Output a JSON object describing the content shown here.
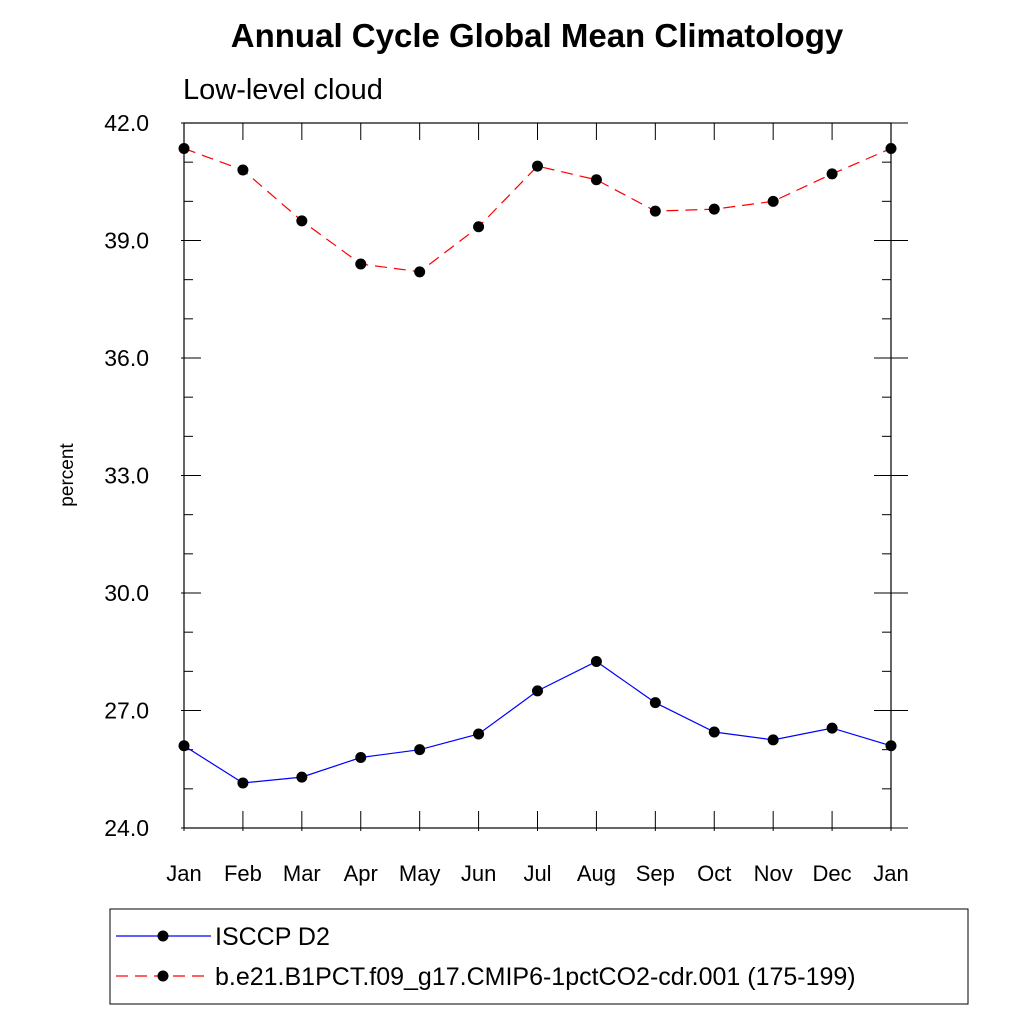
{
  "chart_data": {
    "type": "line",
    "title": "Annual Cycle Global Mean Climatology",
    "subtitle": "Low-level cloud",
    "xlabel": "",
    "ylabel": "percent",
    "ylim": [
      24,
      42
    ],
    "yticks": [
      "24.0",
      "27.0",
      "30.0",
      "33.0",
      "36.0",
      "39.0",
      "42.0"
    ],
    "categories": [
      "Jan",
      "Feb",
      "Mar",
      "Apr",
      "May",
      "Jun",
      "Jul",
      "Aug",
      "Sep",
      "Oct",
      "Nov",
      "Dec",
      "Jan"
    ],
    "grid": false,
    "legend_position": "bottom",
    "series": [
      {
        "name": "ISCCP D2",
        "color": "#0000ff",
        "line_style": "solid",
        "marker": "filled-circle",
        "values": [
          26.1,
          25.15,
          25.3,
          25.8,
          26.0,
          26.4,
          27.5,
          28.25,
          27.2,
          26.45,
          26.25,
          26.55,
          26.1
        ]
      },
      {
        "name": "b.e21.B1PCT.f09_g17.CMIP6-1pctCO2-cdr.001 (175-199)",
        "color": "#ff0000",
        "line_style": "dashed",
        "marker": "filled-circle",
        "values": [
          41.35,
          40.8,
          39.5,
          38.4,
          38.2,
          39.35,
          40.9,
          40.55,
          39.75,
          39.8,
          40.0,
          40.7,
          41.35
        ]
      }
    ]
  }
}
